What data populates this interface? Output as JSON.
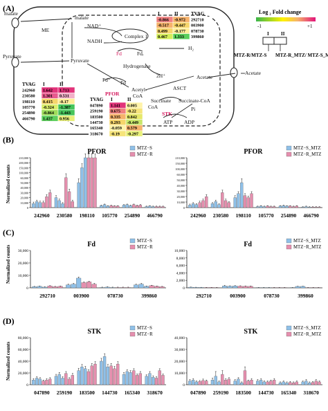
{
  "figure": {
    "panel_labels": [
      "(A)",
      "(B)",
      "(C)",
      "(D)"
    ]
  },
  "pathway": {
    "nodes": {
      "malate_out": "malate",
      "malate_in": "malate",
      "me": "ME",
      "nad_plus": "NAD⁺",
      "nadh": "NADH",
      "complex1": "Complex 1",
      "fd_red": "Fd",
      "fd_ox": "Fdᵣ",
      "hydrogenase": "Hydrogenase",
      "h2": "H₂",
      "two_h": "2H⁺",
      "pyruvate_out": "Pyruvate",
      "pyruvate_in": "Pyruvate",
      "fd_plus": "Fd⁺",
      "fd": "Fd",
      "pfor": "PFOR",
      "acetyl_coa": "Acetyl-",
      "coa": "CoA",
      "ascT": "ASCT",
      "acetate_in": "Acetate",
      "acetate_out": "Acetate",
      "succinate": "Succinate",
      "succinyl_coa": "Succinate-CoA",
      "coa2": "CoA",
      "pi": "Pi",
      "stk": "STK",
      "atp": "ATP",
      "adp": "ADP"
    },
    "colors": {
      "pfor": "#d4145a",
      "stk": "#d4145a",
      "fd_red": "#d4145a"
    },
    "tables": [
      {
        "id": "fd-table",
        "header": [
          "I",
          "II",
          "TVAG"
        ],
        "rows": [
          {
            "i": "-0.866",
            "ii": "-0.972",
            "tvag": "292710",
            "ci": "#f08080",
            "cii": "#f6b26b"
          },
          {
            "i": "-0.517",
            "ii": "-0.447",
            "tvag": "003900",
            "ci": "#f6b26b",
            "cii": "#f6d56b"
          },
          {
            "i": "0.499",
            "ii": "-0.177",
            "tvag": "078730",
            "ci": "#f6d56b",
            "cii": "#ffee99"
          },
          {
            "i": "0.467",
            "ii": "1.333",
            "tvag": "399860",
            "ci": "#d4ee5a",
            "cii": "#5ccf5c"
          }
        ]
      },
      {
        "id": "pfor-table",
        "header": [
          "TVAG",
          "I",
          "II"
        ],
        "rows": [
          {
            "tvag": "242960",
            "i": "1.642",
            "ii": "1.713",
            "ci": "#e2337a",
            "cii": "#e2337a"
          },
          {
            "tvag": "230580",
            "i": "1.301",
            "ii": "0.531",
            "ci": "#e85a8f",
            "cii": "#f2b0c8"
          },
          {
            "tvag": "198110",
            "i": "0.415",
            "ii": "-0.17",
            "ci": "#f6d56b",
            "cii": "#ffee99"
          },
          {
            "tvag": "105770",
            "i": "-0.324",
            "ii": "-1.387",
            "ci": "#d9ee6a",
            "cii": "#45c45a"
          },
          {
            "tvag": "254890",
            "i": "-0.864",
            "ii": "-1.443",
            "ci": "#9edc5a",
            "cii": "#45c45a"
          },
          {
            "tvag": "466790",
            "i": "1.437",
            "ii": "0.956",
            "ci": "#5ccf5c",
            "cii": "#e8f07a"
          }
        ]
      },
      {
        "id": "stk-table",
        "header": [
          "TVAG",
          "I",
          "II"
        ],
        "rows": [
          {
            "tvag": "047890",
            "i": "1.141",
            "ii": "0.005",
            "ci": "#e2337a",
            "cii": "#fff3a8"
          },
          {
            "tvag": "259190",
            "i": "0.675",
            "ii": "-0.22",
            "ci": "#f08080",
            "cii": "#f6e47a"
          },
          {
            "tvag": "183500",
            "i": "0.335",
            "ii": "0.842",
            "ci": "#f6b26b",
            "cii": "#e6e86a"
          },
          {
            "tvag": "144730",
            "i": "0.293",
            "ii": "-0.449",
            "ci": "#f6d56b",
            "cii": "#c8e66a"
          },
          {
            "tvag": "165340",
            "i": "-0.059",
            "ii": "0.579",
            "ci": "#fff3a8",
            "cii": "#f6b26b"
          },
          {
            "tvag": "318670",
            "i": "-0.19",
            "ii": "-0.297",
            "ci": "#f6e47a",
            "cii": "#e8f07a"
          }
        ]
      }
    ]
  },
  "legend": {
    "title": "Log ₂ Fold change",
    "min": "-1",
    "max": "+1",
    "col_i": "I",
    "col_ii": "II",
    "label_i": "MTZ-R/MTZ-S",
    "label_ii": "MTZ-R_MTZ/ MTZ-S_MTZ"
  },
  "chart_data": [
    {
      "id": "B-left",
      "type": "bar",
      "title": "PFOR",
      "ylabel": "Normalized counts",
      "yticks": [
        "0",
        "10,000",
        "20,000",
        "30,000",
        "40,000",
        "50,000",
        "60,000",
        "100,000",
        "150,000",
        "200,000",
        "210,000"
      ],
      "groups": [
        "242960",
        "230580",
        "198110",
        "105770",
        "254890",
        "466790"
      ],
      "series": [
        {
          "name": "MTZ−S",
          "color": "#8fc0e8"
        },
        {
          "name": "MTZ−R",
          "color": "#e58fae"
        }
      ],
      "values": [
        [
          8,
          12,
          10,
          10,
          22,
          30
        ],
        [
          20,
          14,
          8,
          60,
          32,
          12
        ],
        [
          50,
          80,
          100,
          100,
          100,
          100
        ],
        [
          4,
          6,
          3,
          4,
          3,
          3
        ],
        [
          5,
          6,
          4,
          6,
          4,
          5
        ],
        [
          2,
          3,
          2,
          2,
          2,
          2
        ]
      ],
      "errors": [
        [
          3,
          3,
          3,
          3,
          4,
          5
        ],
        [
          4,
          3,
          2,
          8,
          5,
          3
        ],
        [
          8,
          8,
          8,
          8,
          8,
          8
        ],
        [
          1,
          1,
          1,
          1,
          1,
          1
        ],
        [
          1,
          1,
          1,
          1,
          1,
          1
        ],
        [
          1,
          1,
          1,
          1,
          1,
          1
        ]
      ]
    },
    {
      "id": "B-right",
      "type": "bar",
      "title": "PFOR",
      "ylabel": "",
      "yticks": [
        "0",
        "10,000",
        "20,000",
        "30,000",
        "40,000",
        "50,000",
        "60,000",
        "100,000",
        "150,000",
        "210,000"
      ],
      "groups": [
        "242960",
        "230580",
        "198110",
        "105770",
        "254890",
        "466790"
      ],
      "series": [
        {
          "name": "MTZ−S_MTZ",
          "color": "#8fc0e8"
        },
        {
          "name": "MTZ−R_MTZ",
          "color": "#e58fae"
        }
      ],
      "values": [
        [
          5,
          8,
          6,
          10,
          14,
          22
        ],
        [
          8,
          12,
          6,
          30,
          14,
          10
        ],
        [
          20,
          28,
          50,
          24,
          20,
          28
        ],
        [
          2,
          3,
          2,
          3,
          2,
          2
        ],
        [
          3,
          4,
          3,
          3,
          2,
          3
        ],
        [
          1,
          2,
          1,
          1,
          1,
          1
        ]
      ],
      "errors": [
        [
          2,
          2,
          2,
          3,
          3,
          4
        ],
        [
          2,
          3,
          2,
          5,
          3,
          2
        ],
        [
          4,
          4,
          8,
          4,
          3,
          4
        ],
        [
          1,
          1,
          1,
          1,
          1,
          1
        ],
        [
          1,
          1,
          1,
          1,
          1,
          1
        ],
        [
          1,
          1,
          1,
          1,
          1,
          1
        ]
      ]
    },
    {
      "id": "C-left",
      "type": "bar",
      "title": "Fd",
      "ylabel": "Normalized counts",
      "yticks": [
        "0",
        "10,000",
        "20,000",
        "30,000"
      ],
      "groups": [
        "292710",
        "003900",
        "078730",
        "399860"
      ],
      "series": [
        {
          "name": "MTZ−S",
          "color": "#8fc0e8"
        },
        {
          "name": "MTZ−R",
          "color": "#e58fae"
        }
      ],
      "values": [
        [
          3,
          4,
          2,
          5,
          3,
          4
        ],
        [
          8,
          10,
          26,
          14,
          16,
          10
        ],
        [
          1,
          2,
          1,
          1,
          1,
          1
        ],
        [
          8,
          10,
          4,
          6,
          4,
          3
        ]
      ],
      "errors": [
        [
          1,
          1,
          1,
          1,
          1,
          1
        ],
        [
          2,
          2,
          3,
          2,
          2,
          2
        ],
        [
          1,
          1,
          1,
          1,
          1,
          1
        ],
        [
          2,
          2,
          1,
          1,
          1,
          1
        ]
      ]
    },
    {
      "id": "C-right",
      "type": "bar",
      "title": "Fd",
      "ylabel": "",
      "yticks": [
        "0",
        "2,000",
        "4,000",
        "6,000",
        "8,000",
        "10,000"
      ],
      "groups": [
        "292710",
        "003900",
        "078730",
        "399860"
      ],
      "series": [
        {
          "name": "MTZ−S_MTZ",
          "color": "#8fc0e8"
        },
        {
          "name": "MTZ−R_MTZ",
          "color": "#e58fae"
        }
      ],
      "values": [
        [
          1.8,
          1.4,
          1.2,
          1.0,
          1.1,
          0.8
        ],
        [
          5,
          4.5,
          5,
          4.6,
          4.2,
          4
        ],
        [
          0.3,
          0.5,
          0.3,
          0.2,
          0.3,
          0.2
        ],
        [
          0.4,
          3.8,
          3.9,
          0.3,
          0.2,
          0.2
        ]
      ],
      "errors": [
        [
          0.4,
          0.3,
          0.3,
          0.3,
          0.3,
          0.2
        ],
        [
          2,
          1,
          1,
          1,
          1,
          1
        ],
        [
          0.1,
          0.1,
          0.1,
          0.1,
          0.1,
          0.1
        ],
        [
          0.1,
          0.6,
          0.6,
          0.1,
          0.1,
          0.1
        ]
      ]
    },
    {
      "id": "D-left",
      "type": "bar",
      "title": "STK",
      "ylabel": "Normalized counts",
      "yticks": [
        "0",
        "20,000",
        "40,000",
        "60,000",
        "80,000"
      ],
      "groups": [
        "047890",
        "259190",
        "183500",
        "144730",
        "165340",
        "318670"
      ],
      "series": [
        {
          "name": "MTZ−S",
          "color": "#8fc0e8"
        },
        {
          "name": "MTZ−R",
          "color": "#e58fae"
        }
      ],
      "values": [
        [
          10,
          14,
          12,
          8,
          10,
          12
        ],
        [
          18,
          22,
          14,
          24,
          12,
          20
        ],
        [
          30,
          38,
          34,
          28,
          40,
          44
        ],
        [
          50,
          60,
          38,
          40,
          34,
          44
        ],
        [
          22,
          28,
          26,
          30,
          20,
          24
        ],
        [
          18,
          24,
          16,
          14,
          30,
          20
        ]
      ],
      "errors": [
        [
          3,
          3,
          3,
          2,
          3,
          3
        ],
        [
          4,
          4,
          3,
          4,
          3,
          4
        ],
        [
          5,
          5,
          5,
          4,
          5,
          5
        ],
        [
          6,
          6,
          5,
          5,
          5,
          5
        ],
        [
          4,
          4,
          4,
          4,
          3,
          4
        ],
        [
          3,
          4,
          3,
          3,
          4,
          3
        ]
      ]
    },
    {
      "id": "D-right",
      "type": "bar",
      "title": "STK",
      "ylabel": "",
      "yticks": [
        "0",
        "10,000",
        "20,000",
        "30,000",
        "40,000"
      ],
      "groups": [
        "047890",
        "259190",
        "183500",
        "144730",
        "165340",
        "318670"
      ],
      "series": [
        {
          "name": "MTZ−S_MTZ",
          "color": "#8fc0e8"
        },
        {
          "name": "MTZ−R_MTZ",
          "color": "#e58fae"
        }
      ],
      "values": [
        [
          8,
          10,
          6,
          7,
          9,
          8
        ],
        [
          10,
          18,
          6,
          22,
          10,
          12
        ],
        [
          8,
          12,
          4,
          30,
          8,
          10
        ],
        [
          8,
          10,
          6,
          6,
          8,
          10
        ],
        [
          4,
          6,
          4,
          5,
          4,
          6
        ],
        [
          6,
          8,
          4,
          5,
          8,
          6
        ]
      ],
      "errors": [
        [
          3,
          3,
          2,
          2,
          3,
          2
        ],
        [
          4,
          10,
          2,
          8,
          3,
          3
        ],
        [
          3,
          3,
          2,
          8,
          2,
          3
        ],
        [
          3,
          3,
          2,
          2,
          2,
          3
        ],
        [
          2,
          2,
          2,
          2,
          2,
          2
        ],
        [
          2,
          3,
          2,
          2,
          3,
          2
        ]
      ]
    }
  ]
}
